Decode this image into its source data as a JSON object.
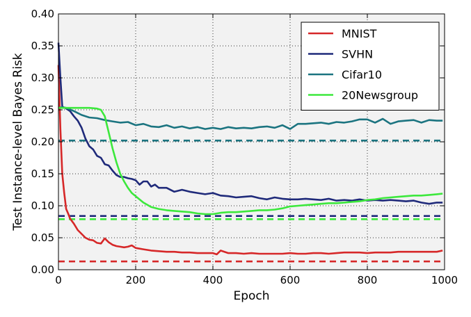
{
  "chart_data": {
    "type": "line",
    "title": "",
    "xlabel": "Epoch",
    "ylabel": "Test Instance-level Bayes Risk",
    "xlim": [
      0,
      1000
    ],
    "ylim": [
      0,
      0.4
    ],
    "xticks": [
      "0",
      "200",
      "400",
      "600",
      "800",
      "1000"
    ],
    "yticks": [
      "0.00",
      "0.05",
      "0.10",
      "0.15",
      "0.20",
      "0.25",
      "0.30",
      "0.35",
      "0.40"
    ],
    "grid": true,
    "legend_position": "top-right",
    "series": [
      {
        "name": "MNIST",
        "color": "#d62728",
        "x": [
          0,
          5,
          10,
          15,
          20,
          25,
          30,
          40,
          50,
          60,
          70,
          80,
          90,
          100,
          110,
          120,
          130,
          140,
          150,
          160,
          170,
          180,
          190,
          200,
          220,
          240,
          260,
          280,
          300,
          320,
          340,
          360,
          380,
          400,
          410,
          420,
          440,
          460,
          480,
          500,
          520,
          540,
          560,
          580,
          600,
          620,
          640,
          660,
          680,
          700,
          720,
          740,
          760,
          780,
          800,
          820,
          840,
          860,
          880,
          900,
          920,
          940,
          960,
          980,
          995
        ],
        "values": [
          0.32,
          0.22,
          0.15,
          0.12,
          0.095,
          0.088,
          0.08,
          0.072,
          0.062,
          0.056,
          0.05,
          0.047,
          0.046,
          0.042,
          0.041,
          0.049,
          0.043,
          0.039,
          0.037,
          0.036,
          0.035,
          0.036,
          0.038,
          0.034,
          0.032,
          0.03,
          0.029,
          0.028,
          0.028,
          0.027,
          0.027,
          0.026,
          0.026,
          0.026,
          0.024,
          0.03,
          0.026,
          0.026,
          0.025,
          0.026,
          0.025,
          0.025,
          0.025,
          0.025,
          0.026,
          0.025,
          0.025,
          0.026,
          0.026,
          0.025,
          0.026,
          0.027,
          0.027,
          0.027,
          0.026,
          0.027,
          0.027,
          0.027,
          0.028,
          0.028,
          0.028,
          0.028,
          0.028,
          0.028,
          0.03
        ]
      },
      {
        "name": "SVHN",
        "color": "#1f2a7a",
        "x": [
          0,
          5,
          10,
          20,
          30,
          40,
          50,
          60,
          70,
          80,
          90,
          100,
          110,
          120,
          130,
          140,
          150,
          160,
          170,
          180,
          190,
          200,
          210,
          220,
          230,
          240,
          250,
          260,
          280,
          300,
          320,
          340,
          360,
          380,
          400,
          420,
          440,
          460,
          480,
          500,
          520,
          540,
          560,
          580,
          600,
          620,
          640,
          660,
          680,
          700,
          720,
          740,
          760,
          780,
          800,
          820,
          840,
          860,
          880,
          900,
          920,
          940,
          960,
          980,
          995
        ],
        "values": [
          0.355,
          0.3,
          0.255,
          0.252,
          0.248,
          0.24,
          0.233,
          0.222,
          0.205,
          0.193,
          0.188,
          0.178,
          0.175,
          0.165,
          0.163,
          0.155,
          0.148,
          0.145,
          0.145,
          0.143,
          0.142,
          0.14,
          0.133,
          0.138,
          0.138,
          0.13,
          0.133,
          0.128,
          0.128,
          0.122,
          0.125,
          0.122,
          0.12,
          0.118,
          0.12,
          0.116,
          0.115,
          0.113,
          0.114,
          0.115,
          0.112,
          0.11,
          0.113,
          0.111,
          0.11,
          0.11,
          0.111,
          0.11,
          0.109,
          0.111,
          0.108,
          0.109,
          0.108,
          0.11,
          0.108,
          0.109,
          0.108,
          0.109,
          0.108,
          0.107,
          0.108,
          0.105,
          0.103,
          0.105,
          0.105
        ]
      },
      {
        "name": "Cifar10",
        "color": "#1b7480",
        "x": [
          0,
          10,
          20,
          40,
          60,
          80,
          100,
          120,
          140,
          160,
          180,
          200,
          220,
          240,
          260,
          280,
          300,
          320,
          340,
          360,
          380,
          400,
          420,
          440,
          460,
          480,
          500,
          520,
          540,
          560,
          580,
          600,
          620,
          640,
          660,
          680,
          700,
          720,
          740,
          760,
          780,
          800,
          820,
          840,
          860,
          880,
          900,
          920,
          940,
          960,
          980,
          995
        ],
        "values": [
          0.253,
          0.254,
          0.253,
          0.248,
          0.242,
          0.238,
          0.237,
          0.234,
          0.232,
          0.23,
          0.231,
          0.226,
          0.228,
          0.224,
          0.223,
          0.226,
          0.222,
          0.224,
          0.221,
          0.223,
          0.22,
          0.222,
          0.22,
          0.223,
          0.221,
          0.222,
          0.221,
          0.223,
          0.224,
          0.222,
          0.226,
          0.22,
          0.228,
          0.228,
          0.229,
          0.23,
          0.228,
          0.231,
          0.23,
          0.232,
          0.235,
          0.235,
          0.23,
          0.236,
          0.228,
          0.232,
          0.233,
          0.234,
          0.23,
          0.234,
          0.233,
          0.233
        ]
      },
      {
        "name": "20Newsgroup",
        "color": "#3ce83c",
        "x": [
          0,
          20,
          40,
          60,
          80,
          100,
          110,
          120,
          130,
          140,
          150,
          160,
          170,
          180,
          190,
          200,
          220,
          240,
          260,
          280,
          300,
          320,
          340,
          360,
          380,
          400,
          420,
          440,
          460,
          480,
          500,
          520,
          540,
          560,
          580,
          600,
          620,
          640,
          660,
          680,
          700,
          720,
          740,
          760,
          780,
          800,
          820,
          840,
          860,
          880,
          900,
          920,
          940,
          960,
          980,
          995
        ],
        "values": [
          0.253,
          0.253,
          0.253,
          0.253,
          0.253,
          0.252,
          0.25,
          0.24,
          0.215,
          0.19,
          0.168,
          0.15,
          0.138,
          0.128,
          0.12,
          0.115,
          0.105,
          0.098,
          0.095,
          0.093,
          0.092,
          0.091,
          0.09,
          0.088,
          0.087,
          0.087,
          0.089,
          0.09,
          0.09,
          0.091,
          0.092,
          0.093,
          0.093,
          0.094,
          0.096,
          0.099,
          0.1,
          0.101,
          0.102,
          0.103,
          0.104,
          0.104,
          0.105,
          0.106,
          0.107,
          0.109,
          0.11,
          0.112,
          0.113,
          0.114,
          0.115,
          0.116,
          0.116,
          0.117,
          0.118,
          0.119
        ]
      }
    ],
    "baselines": [
      {
        "color": "#d62728",
        "value": 0.013
      },
      {
        "color": "#1f2a7a",
        "value": 0.084
      },
      {
        "color": "#3ce83c",
        "value": 0.079
      },
      {
        "color": "#1b7480",
        "value": 0.202
      }
    ],
    "colors": {
      "plot_background": "#f2f2f2",
      "grid": "#333333"
    }
  }
}
